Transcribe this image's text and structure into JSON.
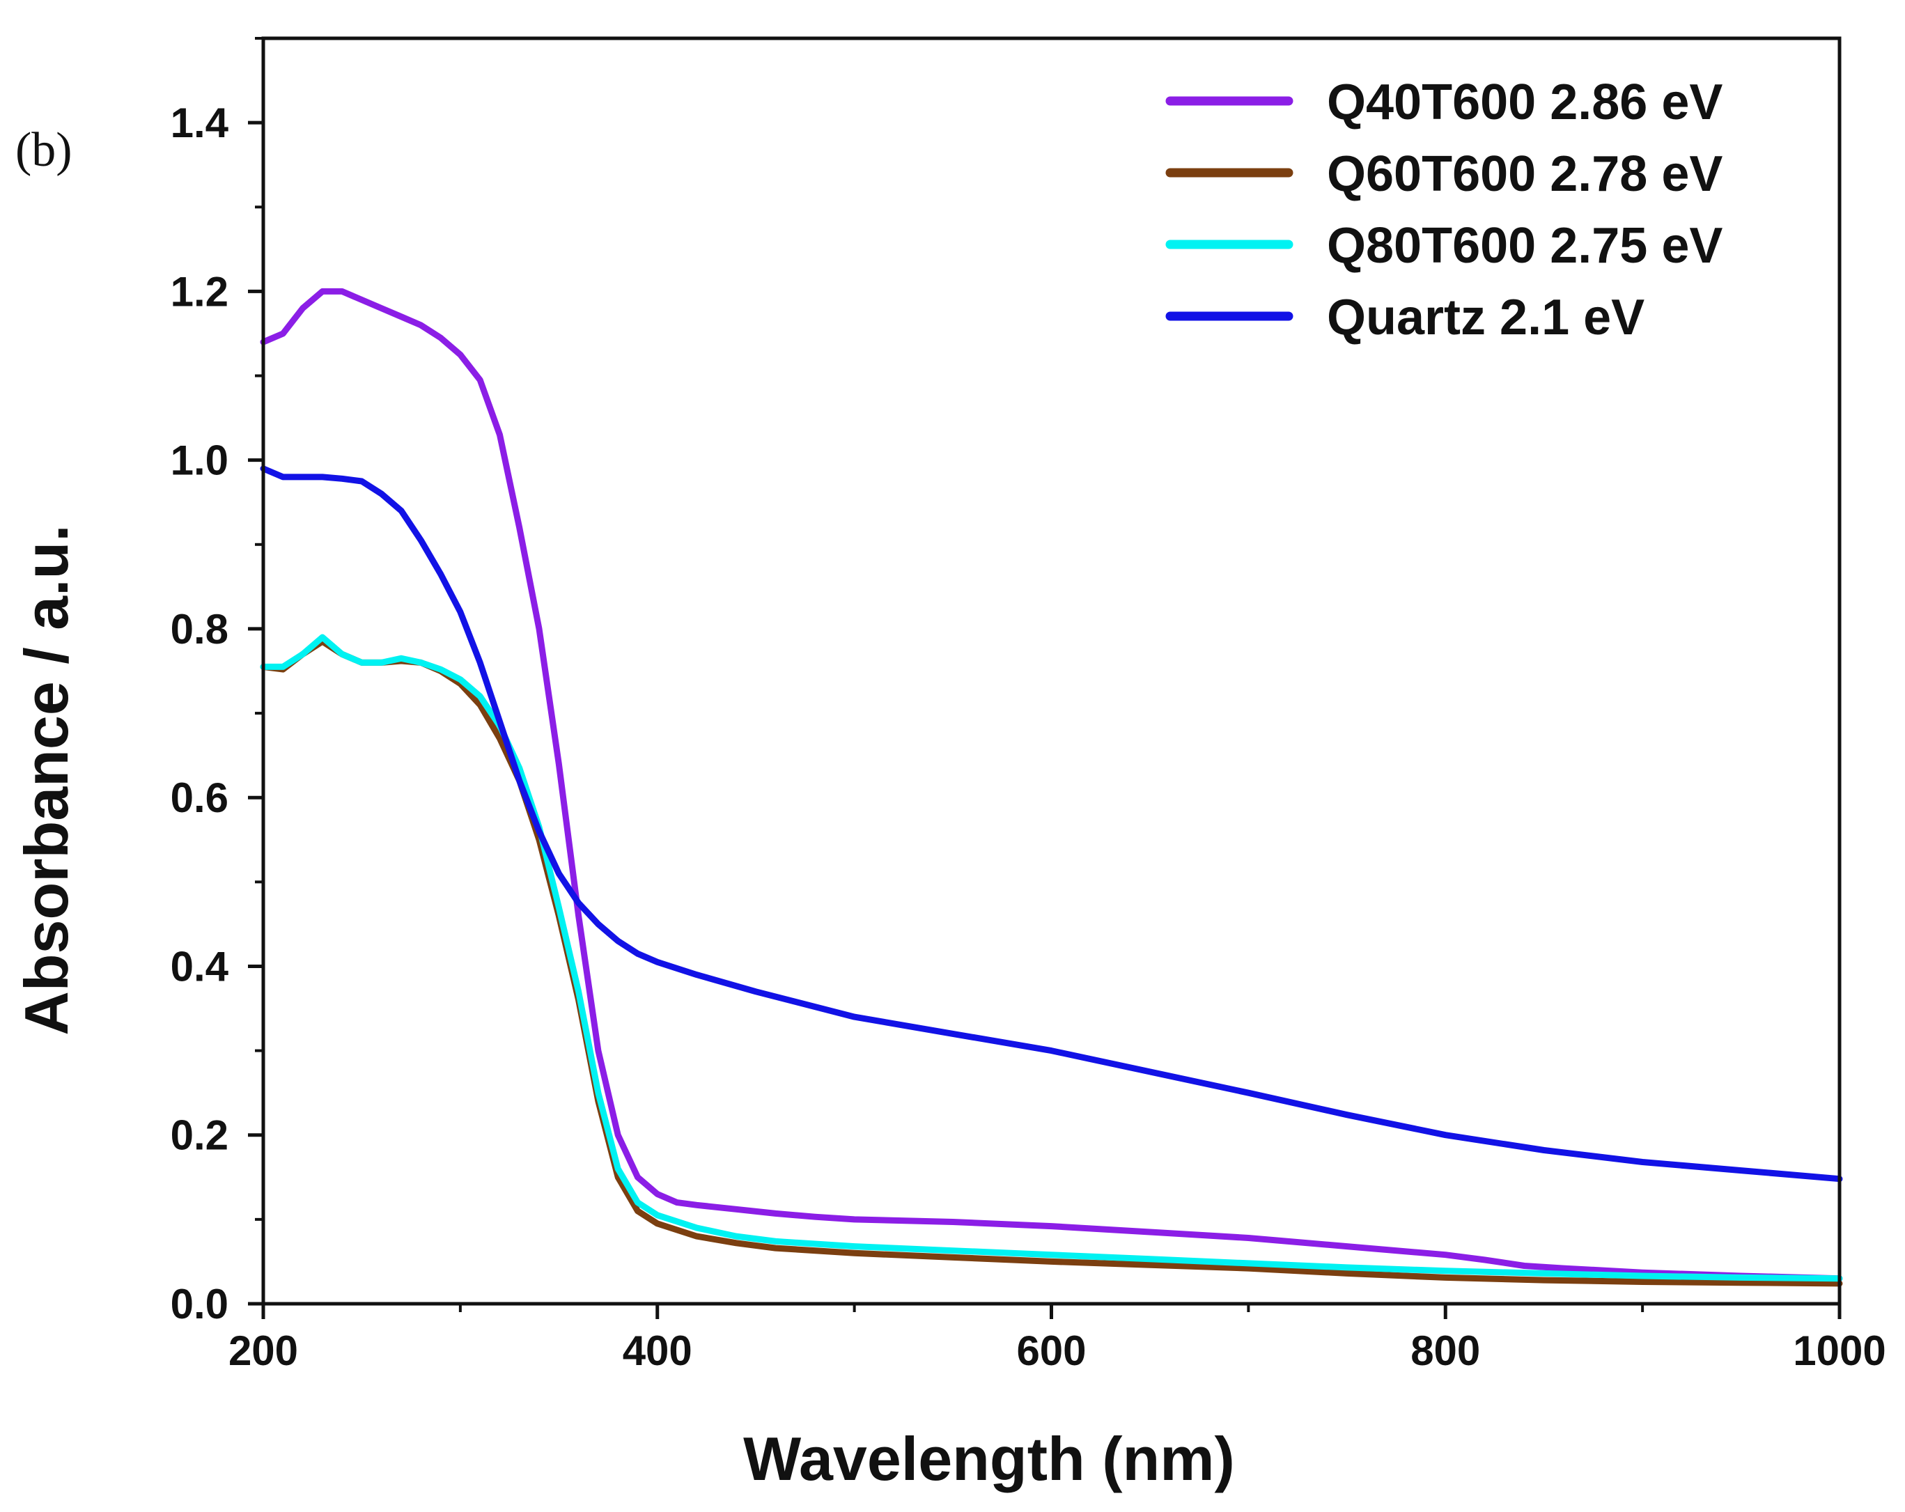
{
  "panel_label": "(b)",
  "chart_data": {
    "type": "line",
    "title": "",
    "xlabel": "Wavelength (nm)",
    "ylabel": "Absorbance / a.u.",
    "xlim": [
      200,
      1000
    ],
    "ylim": [
      0,
      1.5
    ],
    "x_ticks": [
      200,
      400,
      600,
      800,
      1000
    ],
    "x_tick_labels": [
      "200",
      "400",
      "600",
      "800",
      "1000"
    ],
    "y_ticks": [
      0.0,
      0.2,
      0.4,
      0.6,
      0.8,
      1.0,
      1.2,
      1.4
    ],
    "y_tick_labels": [
      "0.0",
      "0.2",
      "0.4",
      "0.6",
      "0.8",
      "1.0",
      "1.2",
      "1.4"
    ],
    "grid": false,
    "legend_position": "top-right",
    "series": [
      {
        "name": "Q40T600 2.86 eV",
        "color": "#8b1ee6",
        "x": [
          200,
          210,
          220,
          230,
          240,
          250,
          260,
          270,
          280,
          290,
          300,
          310,
          320,
          330,
          340,
          350,
          360,
          370,
          380,
          390,
          400,
          410,
          420,
          440,
          460,
          480,
          500,
          550,
          600,
          650,
          700,
          750,
          800,
          820,
          840,
          860,
          900,
          950,
          1000
        ],
        "y": [
          1.14,
          1.15,
          1.18,
          1.2,
          1.2,
          1.19,
          1.18,
          1.17,
          1.16,
          1.145,
          1.125,
          1.095,
          1.03,
          0.92,
          0.8,
          0.64,
          0.46,
          0.3,
          0.2,
          0.15,
          0.13,
          0.12,
          0.117,
          0.112,
          0.107,
          0.103,
          0.1,
          0.097,
          0.092,
          0.085,
          0.078,
          0.068,
          0.058,
          0.052,
          0.045,
          0.042,
          0.037,
          0.033,
          0.03
        ]
      },
      {
        "name": "Q60T600 2.78 eV",
        "color": "#7b3f10",
        "x": [
          200,
          210,
          220,
          230,
          240,
          250,
          260,
          270,
          280,
          290,
          300,
          310,
          320,
          330,
          340,
          350,
          360,
          370,
          380,
          390,
          400,
          420,
          440,
          460,
          500,
          550,
          600,
          650,
          700,
          750,
          800,
          850,
          900,
          950,
          1000
        ],
        "y": [
          0.755,
          0.752,
          0.77,
          0.785,
          0.77,
          0.76,
          0.76,
          0.762,
          0.76,
          0.75,
          0.735,
          0.71,
          0.67,
          0.62,
          0.55,
          0.46,
          0.36,
          0.24,
          0.15,
          0.11,
          0.095,
          0.08,
          0.072,
          0.066,
          0.06,
          0.055,
          0.05,
          0.046,
          0.042,
          0.036,
          0.031,
          0.028,
          0.026,
          0.025,
          0.024
        ]
      },
      {
        "name": "Q80T600 2.75 eV",
        "color": "#00f2f2",
        "x": [
          200,
          210,
          220,
          230,
          240,
          250,
          260,
          270,
          280,
          290,
          300,
          310,
          320,
          330,
          340,
          350,
          360,
          370,
          380,
          390,
          400,
          420,
          440,
          460,
          500,
          550,
          600,
          650,
          700,
          750,
          800,
          850,
          900,
          950,
          1000
        ],
        "y": [
          0.755,
          0.755,
          0.77,
          0.79,
          0.77,
          0.76,
          0.76,
          0.765,
          0.76,
          0.752,
          0.74,
          0.72,
          0.685,
          0.635,
          0.565,
          0.47,
          0.37,
          0.25,
          0.16,
          0.12,
          0.105,
          0.09,
          0.08,
          0.074,
          0.068,
          0.063,
          0.058,
          0.053,
          0.048,
          0.043,
          0.039,
          0.036,
          0.033,
          0.031,
          0.03
        ]
      },
      {
        "name": "Quartz 2.1 eV",
        "color": "#1212e6",
        "x": [
          200,
          210,
          220,
          230,
          240,
          250,
          260,
          270,
          280,
          290,
          300,
          310,
          320,
          330,
          340,
          350,
          360,
          370,
          380,
          390,
          400,
          420,
          450,
          500,
          550,
          600,
          650,
          700,
          750,
          800,
          850,
          900,
          950,
          1000
        ],
        "y": [
          0.99,
          0.98,
          0.98,
          0.98,
          0.978,
          0.975,
          0.96,
          0.94,
          0.905,
          0.865,
          0.82,
          0.76,
          0.69,
          0.62,
          0.56,
          0.51,
          0.475,
          0.45,
          0.43,
          0.415,
          0.405,
          0.39,
          0.37,
          0.34,
          0.32,
          0.3,
          0.275,
          0.25,
          0.224,
          0.2,
          0.182,
          0.168,
          0.158,
          0.148
        ]
      }
    ]
  }
}
